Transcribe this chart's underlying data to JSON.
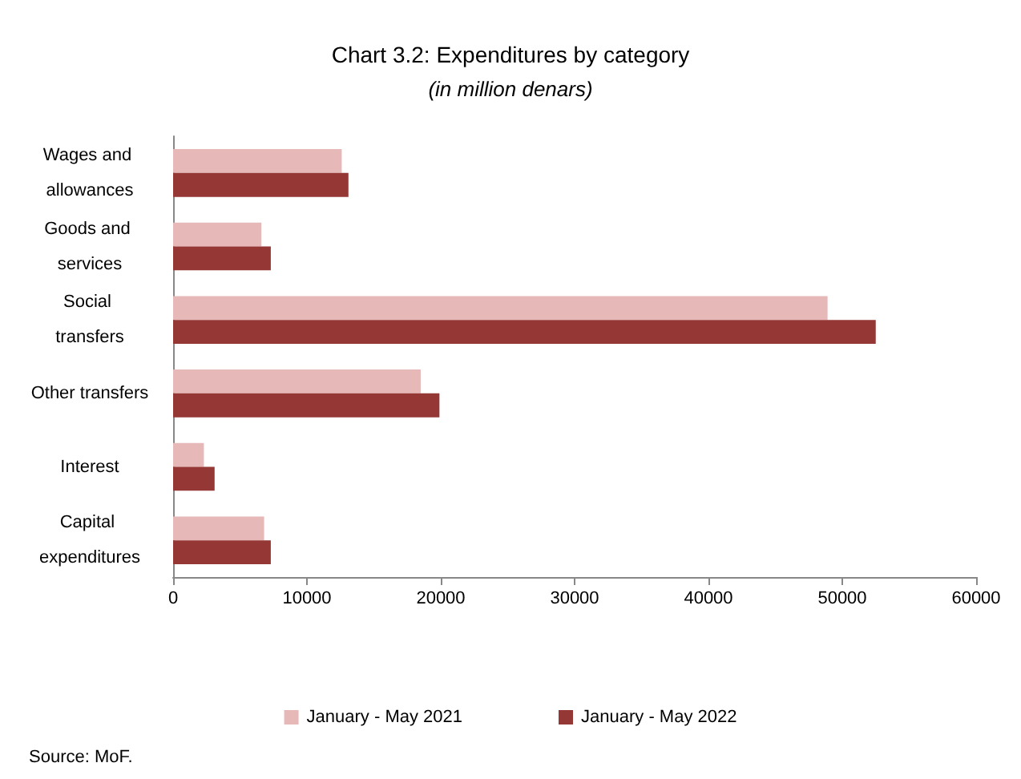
{
  "chart_data": {
    "type": "bar",
    "orientation": "horizontal",
    "title": "Chart 3.2: Expenditures by category",
    "subtitle": "(in million denars)",
    "categories": [
      "Wages and allowances",
      "Goods and services",
      "Social transfers",
      "Other transfers",
      "Interest",
      "Capital expenditures"
    ],
    "series": [
      {
        "name": "January - May 2021",
        "color": "#e6b8b7",
        "values": [
          12600,
          6600,
          48900,
          18500,
          2300,
          6800
        ]
      },
      {
        "name": "January - May 2022",
        "color": "#953735",
        "values": [
          13100,
          7300,
          52500,
          19900,
          3100,
          7300
        ]
      }
    ],
    "xlim": [
      0,
      60000
    ],
    "xticks": [
      0,
      10000,
      20000,
      30000,
      40000,
      50000,
      60000
    ],
    "grid": false,
    "legend": "bottom",
    "annotations": [
      "Source: MoF."
    ]
  }
}
